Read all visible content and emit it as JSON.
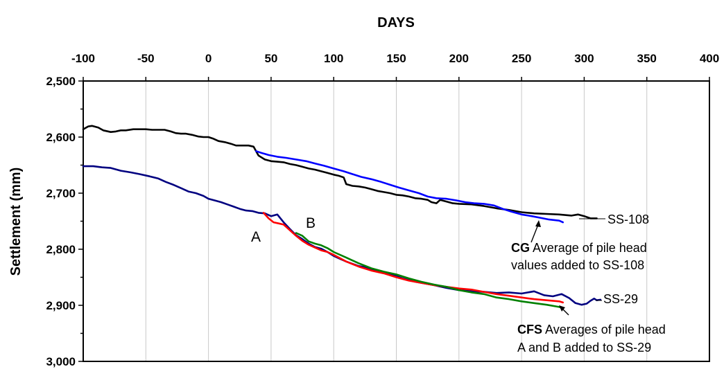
{
  "chart_data": {
    "type": "line",
    "title": "",
    "xlabel": "DAYS",
    "ylabel": "Settlement (mm)",
    "xlim": [
      -100,
      400
    ],
    "ylim": [
      2500,
      3000
    ],
    "y_reversed": true,
    "x_axis_position": "top",
    "grid": "vertical",
    "x_ticks": [
      -100,
      -50,
      0,
      50,
      100,
      150,
      200,
      250,
      300,
      350,
      400
    ],
    "x_tick_labels": [
      "-100",
      "-50",
      "0",
      "50",
      "100",
      "150",
      "200",
      "250",
      "300",
      "350",
      "400"
    ],
    "y_ticks": [
      2500,
      2600,
      2700,
      2800,
      2900,
      3000
    ],
    "y_tick_labels": [
      "2,500",
      "2,600",
      "2,700",
      "2,800",
      "2,900",
      "3,000"
    ],
    "series": [
      {
        "name": "SS-108",
        "color": "#000000",
        "x": [
          -100,
          -96,
          -93,
          -88,
          -84,
          -78,
          -74,
          -70,
          -66,
          -60,
          -55,
          -50,
          -45,
          -40,
          -35,
          -30,
          -26,
          -22,
          -18,
          -13,
          -8,
          -4,
          0,
          4,
          8,
          13,
          18,
          22,
          27,
          32,
          36,
          38,
          40,
          45,
          50,
          55,
          60,
          65,
          70,
          75,
          80,
          85,
          90,
          95,
          100,
          104,
          108,
          110,
          115,
          120,
          125,
          130,
          135,
          140,
          145,
          150,
          155,
          160,
          165,
          170,
          175,
          178,
          182,
          185,
          190,
          195,
          200,
          210,
          220,
          230,
          240,
          250,
          260,
          270,
          280,
          290,
          295,
          300,
          305,
          310
        ],
        "values": [
          2586,
          2581,
          2580,
          2583,
          2588,
          2591,
          2590,
          2588,
          2588,
          2586,
          2586,
          2586,
          2587,
          2587,
          2587,
          2590,
          2593,
          2594,
          2594,
          2596,
          2599,
          2600,
          2600,
          2603,
          2607,
          2609,
          2612,
          2615,
          2615,
          2615,
          2617,
          2625,
          2633,
          2640,
          2643,
          2644,
          2645,
          2648,
          2650,
          2653,
          2656,
          2658,
          2661,
          2664,
          2667,
          2669,
          2672,
          2684,
          2687,
          2688,
          2690,
          2693,
          2696,
          2698,
          2700,
          2703,
          2704,
          2706,
          2709,
          2710,
          2712,
          2716,
          2718,
          2712,
          2715,
          2718,
          2719,
          2720,
          2723,
          2727,
          2730,
          2734,
          2736,
          2737,
          2738,
          2740,
          2738,
          2741,
          2745,
          2745
        ]
      },
      {
        "name": "CG Average of pile head values added to SS-108",
        "color": "#0000ff",
        "x": [
          38,
          42,
          48,
          55,
          62,
          70,
          78,
          85,
          92,
          100,
          108,
          115,
          122,
          130,
          138,
          145,
          152,
          160,
          168,
          175,
          182,
          190,
          198,
          205,
          212,
          220,
          228,
          235,
          242,
          250,
          258,
          265,
          272,
          280,
          283
        ],
        "values": [
          2625,
          2628,
          2632,
          2635,
          2637,
          2640,
          2643,
          2647,
          2651,
          2656,
          2661,
          2666,
          2671,
          2675,
          2680,
          2685,
          2690,
          2695,
          2700,
          2706,
          2709,
          2710,
          2713,
          2716,
          2718,
          2719,
          2722,
          2728,
          2733,
          2738,
          2741,
          2744,
          2747,
          2749,
          2752
        ]
      },
      {
        "name": "SS-29",
        "color": "#000080",
        "x": [
          -100,
          -92,
          -85,
          -78,
          -70,
          -62,
          -55,
          -47,
          -40,
          -34,
          -28,
          -22,
          -16,
          -10,
          -4,
          0,
          5,
          10,
          15,
          20,
          25,
          30,
          35,
          40,
          45,
          50,
          55,
          60,
          65,
          70,
          75,
          80,
          85,
          90,
          95,
          100,
          105,
          110,
          115,
          120,
          125,
          130,
          135,
          140,
          145,
          150,
          155,
          160,
          165,
          170,
          175,
          180,
          190,
          200,
          210,
          220,
          230,
          240,
          250,
          260,
          268,
          275,
          282,
          288,
          293,
          298,
          302,
          305,
          308,
          310,
          313
        ],
        "values": [
          2652,
          2652,
          2654,
          2655,
          2660,
          2663,
          2666,
          2670,
          2674,
          2680,
          2685,
          2691,
          2697,
          2700,
          2705,
          2710,
          2713,
          2716,
          2720,
          2724,
          2728,
          2731,
          2732,
          2735,
          2736,
          2741,
          2738,
          2752,
          2764,
          2775,
          2782,
          2790,
          2796,
          2799,
          2805,
          2812,
          2817,
          2822,
          2826,
          2830,
          2832,
          2836,
          2840,
          2842,
          2845,
          2848,
          2852,
          2855,
          2858,
          2860,
          2862,
          2864,
          2869,
          2873,
          2875,
          2876,
          2878,
          2877,
          2879,
          2875,
          2882,
          2884,
          2880,
          2887,
          2896,
          2899,
          2897,
          2892,
          2888,
          2891,
          2890
        ]
      },
      {
        "name": "A",
        "color": "#ff0000",
        "x": [
          44,
          48,
          52,
          56,
          60,
          65,
          70,
          75,
          80,
          85,
          90,
          95,
          100,
          110,
          120,
          130,
          140,
          150,
          160,
          170,
          180,
          190,
          200,
          210,
          220,
          230,
          240,
          250,
          260,
          270,
          280,
          283
        ],
        "values": [
          2735,
          2745,
          2752,
          2754,
          2756,
          2766,
          2776,
          2785,
          2792,
          2797,
          2802,
          2805,
          2810,
          2822,
          2831,
          2838,
          2843,
          2850,
          2856,
          2860,
          2864,
          2867,
          2870,
          2872,
          2876,
          2880,
          2883,
          2886,
          2889,
          2891,
          2893,
          2895
        ]
      },
      {
        "name": "B",
        "color": "#008000",
        "x": [
          70,
          75,
          80,
          85,
          90,
          95,
          100,
          110,
          120,
          130,
          140,
          150,
          160,
          170,
          180,
          190,
          200,
          210,
          220,
          230,
          240,
          250,
          260,
          270,
          280,
          283
        ],
        "values": [
          2771,
          2776,
          2786,
          2790,
          2793,
          2798,
          2805,
          2815,
          2825,
          2834,
          2840,
          2845,
          2852,
          2858,
          2863,
          2867,
          2873,
          2877,
          2880,
          2886,
          2889,
          2893,
          2896,
          2899,
          2903,
          2905
        ]
      }
    ],
    "annotations": {
      "label_a": "A",
      "label_b": "B",
      "ss108": "SS-108",
      "ss29": "SS-29",
      "cg_bold": "CG",
      "cg_line1": " Average of pile head",
      "cg_line2": "values added to SS-108",
      "cfs_bold": "CFS",
      "cfs_line1": " Averages of pile head",
      "cfs_line2": "A and B added to SS-29"
    }
  }
}
